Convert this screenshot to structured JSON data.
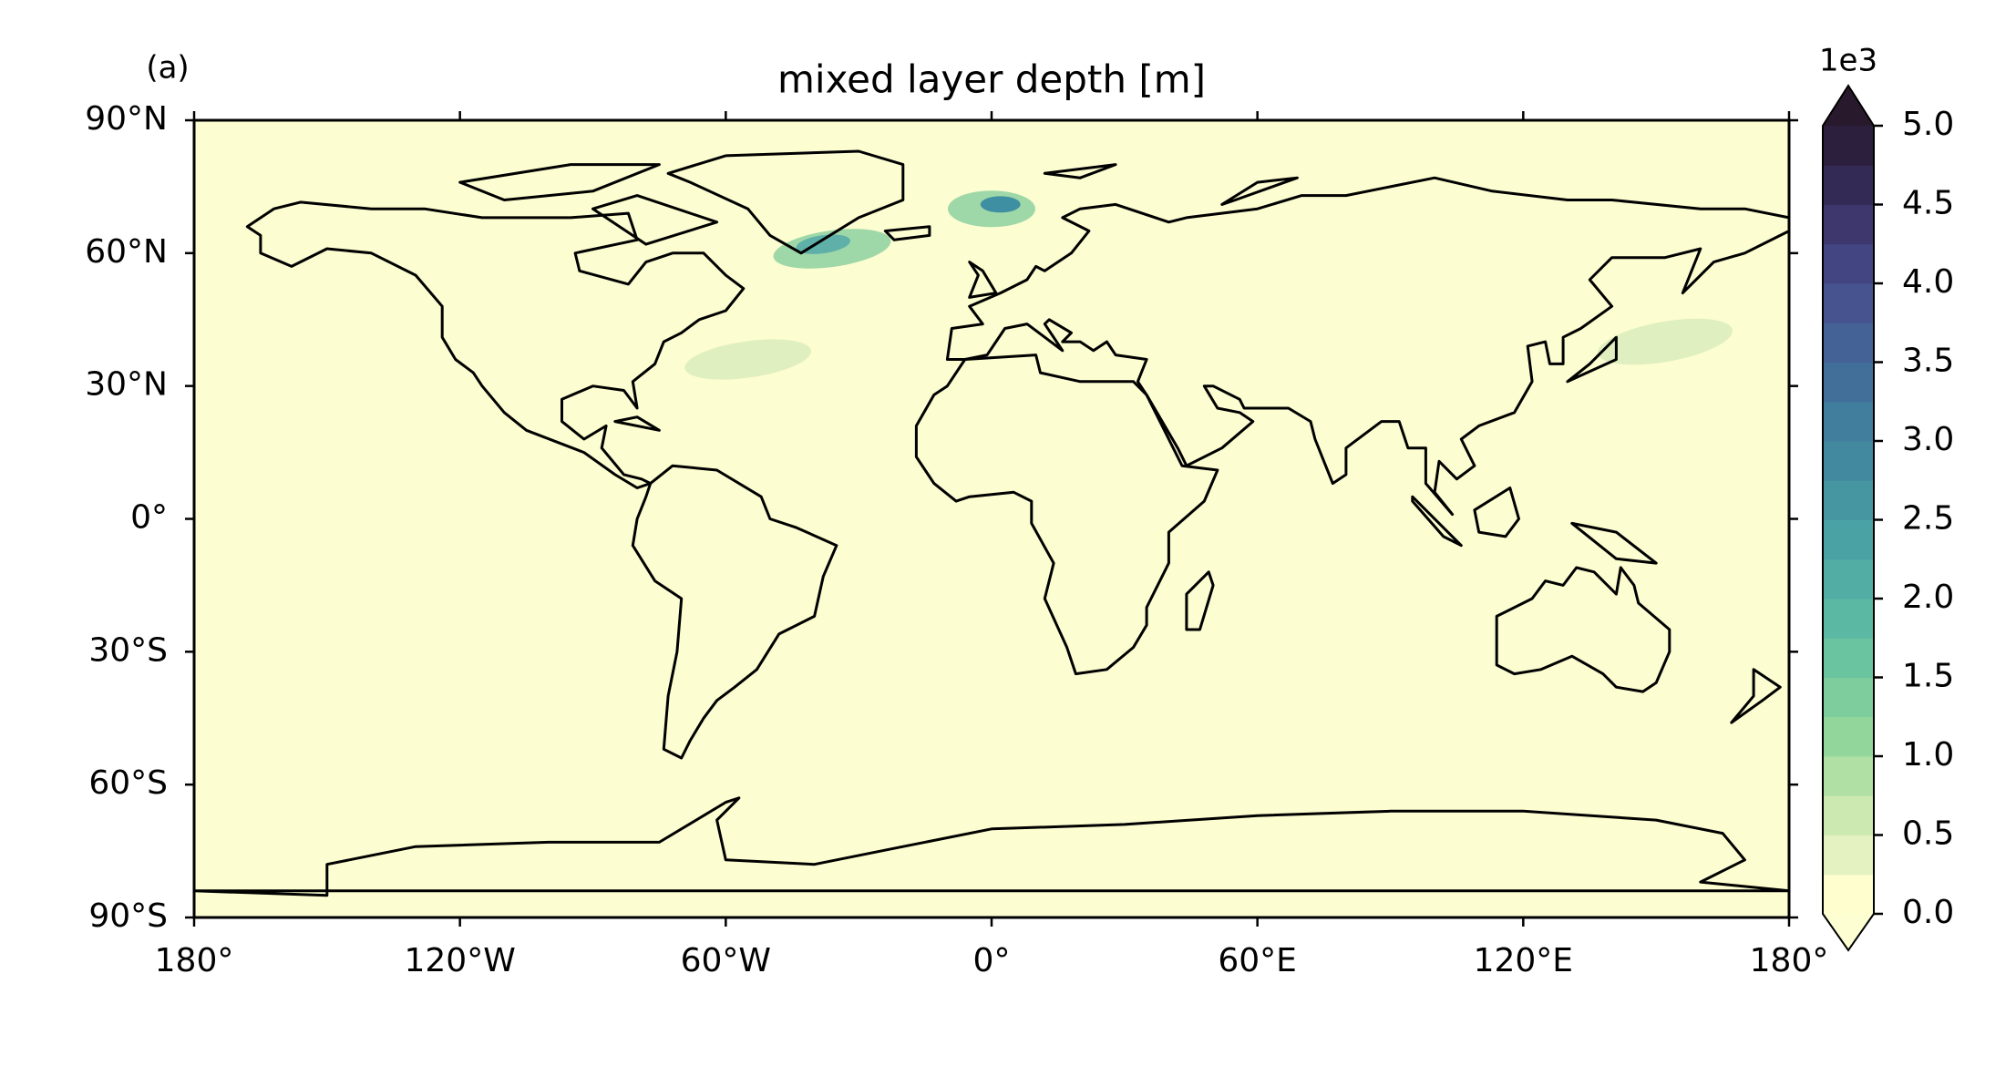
{
  "chart_data": {
    "type": "map",
    "title": "mixed layer depth [m]",
    "panel_label": "(a)",
    "background_color": "#fcfdd0",
    "xlim": [
      -180,
      180
    ],
    "xticks": [
      {
        "value": -180,
        "label": "180°"
      },
      {
        "value": -120,
        "label": "120°W"
      },
      {
        "value": -60,
        "label": "60°W"
      },
      {
        "value": 0,
        "label": "0°"
      },
      {
        "value": 60,
        "label": "60°E"
      },
      {
        "value": 120,
        "label": "120°E"
      },
      {
        "value": 180,
        "label": "180°"
      }
    ],
    "ylim": [
      -90,
      90
    ],
    "yticks": [
      {
        "value": -90,
        "label": "90°S"
      },
      {
        "value": -60,
        "label": "60°S"
      },
      {
        "value": -30,
        "label": "30°S"
      },
      {
        "value": 0,
        "label": "0°"
      },
      {
        "value": 30,
        "label": "30°N"
      },
      {
        "value": 60,
        "label": "60°N"
      },
      {
        "value": 90,
        "label": "90°N"
      }
    ],
    "colorbar": {
      "offset_label": "1e3",
      "lim": [
        0,
        5
      ],
      "extend": "both",
      "under_color": "#fefed3",
      "over_color": "#281a2c",
      "colors": [
        "#fefecf",
        "#e3f2c0",
        "#cde9b2",
        "#b0e0a3",
        "#93d69b",
        "#7ecd9c",
        "#6ac4a0",
        "#5bb9a3",
        "#52aea4",
        "#4ba2a4",
        "#4696a2",
        "#42899f",
        "#417d9c",
        "#426f99",
        "#446296",
        "#46538f",
        "#434582",
        "#3d376e",
        "#342a56",
        "#2b1f3d"
      ],
      "ticks": [
        {
          "value": 0,
          "label": "0.0"
        },
        {
          "value": 0.5,
          "label": "0.5"
        },
        {
          "value": 1,
          "label": "1.0"
        },
        {
          "value": 1.5,
          "label": "1.5"
        },
        {
          "value": 2,
          "label": "2.0"
        },
        {
          "value": 2.5,
          "label": "2.5"
        },
        {
          "value": 3,
          "label": "3.0"
        },
        {
          "value": 3.5,
          "label": "3.5"
        },
        {
          "value": 4,
          "label": "4.0"
        },
        {
          "value": 4.5,
          "label": "4.5"
        },
        {
          "value": 5,
          "label": "5.0"
        }
      ]
    }
  }
}
